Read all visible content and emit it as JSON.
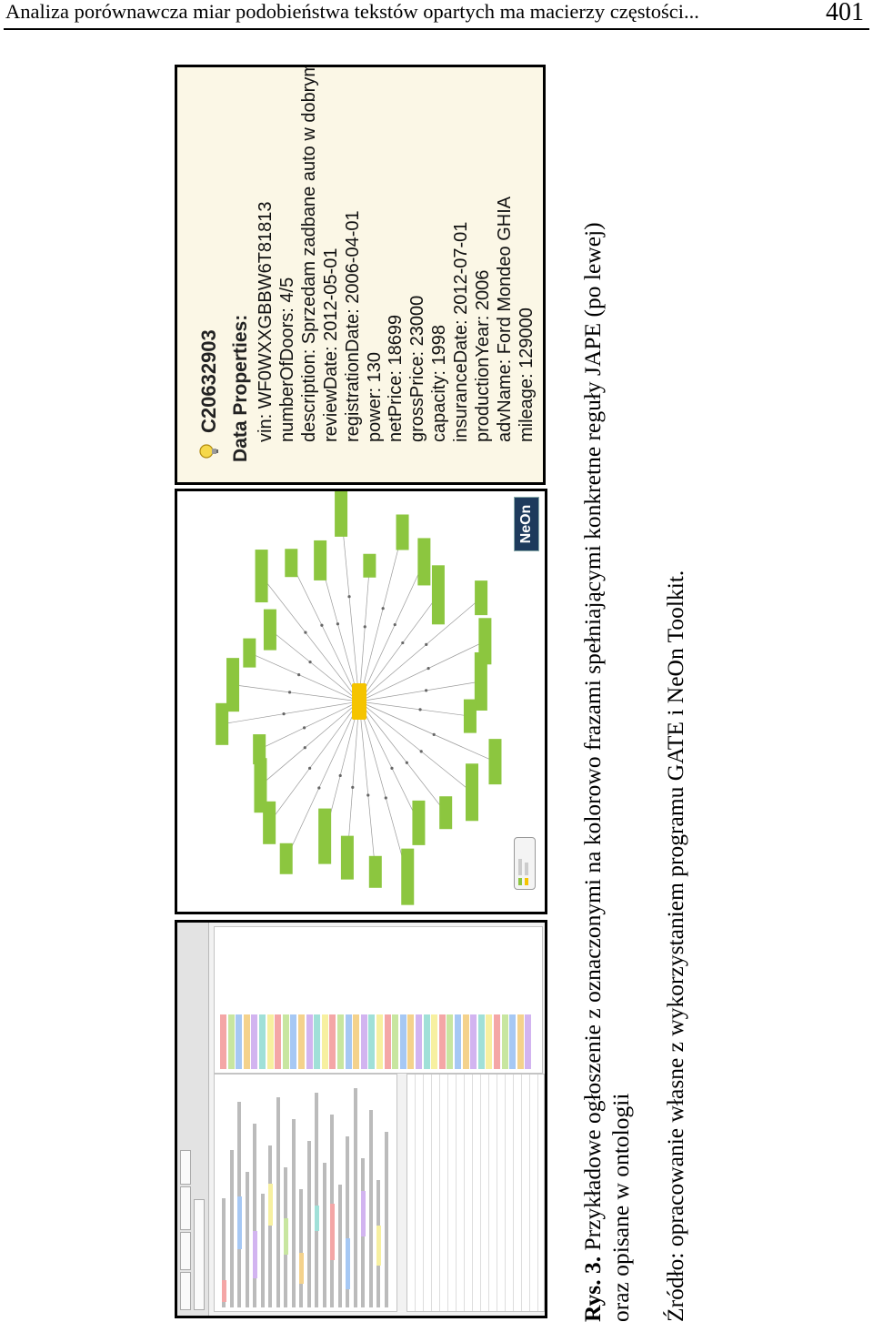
{
  "header": {
    "title": "Analiza porównawcza miar podobieństwa tekstów opartych ma macierzy częstości...",
    "page_number": "401"
  },
  "figure": {
    "properties_panel": {
      "individual_id": "C20632903",
      "section_label": "Data Properties:",
      "properties": [
        "vin: WF0WXXGBBW6T81813",
        "numberOfDoors: 4/5",
        "description: Sprzedam zadbane auto w dobrym stanie.",
        "reviewDate: 2012-05-01",
        "registrationDate: 2006-04-01",
        "power: 130",
        "netPrice: 18699",
        "grossPrice: 23000",
        "capacity: 1998",
        "insuranceDate: 2012-07-01",
        "productionYear: 2006",
        "advName: Ford Mondeo GHIA",
        "mileage: 129000"
      ]
    },
    "graph_panel": {
      "logo_text": "NeOn",
      "node_fill": "#8cc63f",
      "center_fill": "#f5c400",
      "edge_color": "#9a9a9a"
    },
    "gate_panel": {
      "highlight_colors": [
        "#f4a6a6",
        "#c8e6a0",
        "#a6c8f4",
        "#f4d28c",
        "#d2b4f0",
        "#a0e0d8",
        "#f7f0a0"
      ]
    },
    "caption": {
      "label": "Rys. 3.",
      "line1": "Przykładowe ogłoszenie z oznaczonymi na kolorowo frazami spełniającymi konkretne reguły JAPE (po lewej)",
      "line2": "oraz opisane w ontologii",
      "source": "Źródło: opracowanie własne z wykorzystaniem programu GATE i NeOn Toolkit."
    }
  }
}
